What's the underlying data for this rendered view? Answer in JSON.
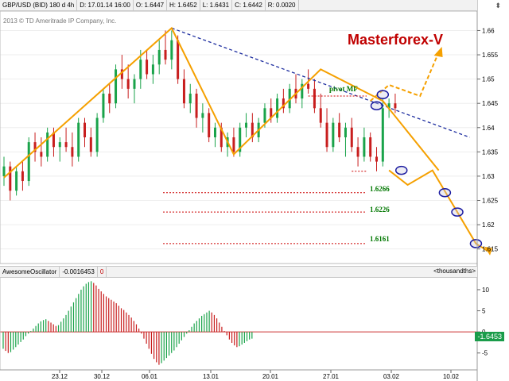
{
  "header": {
    "symbol": "GBP/USD (BID) 180 d 4h",
    "time": "D: 17.01.14 16:00",
    "open": "O: 1.6447",
    "high": "H: 1.6452",
    "low": "L: 1.6431",
    "close": "C: 1.6442",
    "range": "R: 0.0020",
    "copyright": "2013 © TD Ameritrade IP Company, Inc."
  },
  "brand": "Masterforex-V",
  "levels": {
    "pivot": "pivot MF",
    "l1": "1.6266",
    "l2": "1.6226",
    "l3": "1.6161"
  },
  "oscillator": {
    "name": "AwesomeOscillator",
    "value": "-0.0016453",
    "zero": "0",
    "units": "<thousandths>",
    "current": "-1.6453"
  },
  "colors": {
    "bull": "#1aa34a",
    "bear": "#c81e1e",
    "orange": "#f5a000",
    "trend": "#1f2fa0",
    "level": "#cc0000",
    "brand": "#c00000"
  },
  "chart_data": {
    "type": "candlestick",
    "price_axis": {
      "ylim": [
        1.612,
        1.664
      ],
      "ticks": [
        "1.66",
        "1.655",
        "1.65",
        "1.645",
        "1.64",
        "1.635",
        "1.63",
        "1.625",
        "1.62",
        "1.615"
      ]
    },
    "osc_axis": {
      "ylim": [
        -9,
        13
      ],
      "ticks": [
        "10",
        "5",
        "0",
        "-5"
      ]
    },
    "x_axis": {
      "ticks": [
        "23.12",
        "30.12",
        "06.01",
        "13.01",
        "20.01",
        "27.01",
        "03.02",
        "10.02"
      ],
      "bars_visible": 105
    },
    "zigzag": [
      {
        "bar": 0,
        "price": 1.6297
      },
      {
        "bar": 27,
        "price": 1.6605
      },
      {
        "bar": 37,
        "price": 1.6345
      },
      {
        "bar": 51,
        "price": 1.652
      },
      {
        "bar": 61,
        "price": 1.6455
      },
      {
        "bar": 70,
        "price": 1.6312
      }
    ],
    "trendline": {
      "from": {
        "bar": 27,
        "price": 1.6605
      },
      "to": {
        "bar": 75,
        "price": 1.638
      }
    },
    "pivot_level": {
      "price": 1.6465,
      "from_bar": 49
    },
    "support_line": {
      "price": 1.631,
      "from_bar": 56
    },
    "levels": [
      1.6266,
      1.6226,
      1.6161
    ],
    "forecast_down": [
      {
        "bar": 62,
        "price": 1.6312
      },
      {
        "bar": 65,
        "price": 1.6282
      },
      {
        "bar": 69,
        "price": 1.6312
      },
      {
        "bar": 73,
        "price": 1.6226
      },
      {
        "bar": 76,
        "price": 1.6161
      },
      {
        "bar": 78,
        "price": 1.6145
      }
    ],
    "forecast_up": [
      {
        "bar": 59,
        "price": 1.6455
      },
      {
        "bar": 62,
        "price": 1.6488
      },
      {
        "bar": 67,
        "price": 1.6465
      },
      {
        "bar": 70,
        "price": 1.6555
      }
    ],
    "circles": [
      {
        "bar": 61,
        "price": 1.6468
      },
      {
        "bar": 60,
        "price": 1.6445
      },
      {
        "bar": 64,
        "price": 1.6312
      },
      {
        "bar": 71,
        "price": 1.6266
      },
      {
        "bar": 73,
        "price": 1.6226
      },
      {
        "bar": 76,
        "price": 1.6161
      }
    ],
    "candles": [
      [
        1.63,
        1.634,
        1.628,
        1.632
      ],
      [
        1.632,
        1.633,
        1.625,
        1.627
      ],
      [
        1.627,
        1.632,
        1.626,
        1.631
      ],
      [
        1.631,
        1.633,
        1.627,
        1.629
      ],
      [
        1.629,
        1.638,
        1.628,
        1.637
      ],
      [
        1.637,
        1.639,
        1.633,
        1.635
      ],
      [
        1.635,
        1.638,
        1.632,
        1.634
      ],
      [
        1.634,
        1.64,
        1.633,
        1.639
      ],
      [
        1.639,
        1.64,
        1.634,
        1.636
      ],
      [
        1.636,
        1.638,
        1.633,
        1.637
      ],
      [
        1.637,
        1.64,
        1.635,
        1.636
      ],
      [
        1.636,
        1.639,
        1.632,
        1.634
      ],
      [
        1.634,
        1.642,
        1.633,
        1.641
      ],
      [
        1.641,
        1.642,
        1.636,
        1.638
      ],
      [
        1.638,
        1.64,
        1.634,
        1.635
      ],
      [
        1.635,
        1.643,
        1.634,
        1.642
      ],
      [
        1.642,
        1.648,
        1.641,
        1.647
      ],
      [
        1.647,
        1.649,
        1.643,
        1.645
      ],
      [
        1.645,
        1.653,
        1.644,
        1.652
      ],
      [
        1.652,
        1.655,
        1.648,
        1.65
      ],
      [
        1.65,
        1.653,
        1.646,
        1.648
      ],
      [
        1.648,
        1.651,
        1.645,
        1.65
      ],
      [
        1.65,
        1.656,
        1.648,
        1.654
      ],
      [
        1.654,
        1.656,
        1.65,
        1.651
      ],
      [
        1.651,
        1.655,
        1.649,
        1.653
      ],
      [
        1.653,
        1.658,
        1.651,
        1.656
      ],
      [
        1.656,
        1.66,
        1.653,
        1.654
      ],
      [
        1.654,
        1.66,
        1.652,
        1.658
      ],
      [
        1.658,
        1.659,
        1.649,
        1.65
      ],
      [
        1.65,
        1.652,
        1.644,
        1.645
      ],
      [
        1.645,
        1.649,
        1.643,
        1.647
      ],
      [
        1.647,
        1.648,
        1.64,
        1.642
      ],
      [
        1.642,
        1.645,
        1.639,
        1.643
      ],
      [
        1.643,
        1.644,
        1.637,
        1.638
      ],
      [
        1.638,
        1.641,
        1.636,
        1.64
      ],
      [
        1.64,
        1.641,
        1.635,
        1.636
      ],
      [
        1.636,
        1.639,
        1.634,
        1.638
      ],
      [
        1.638,
        1.64,
        1.634,
        1.635
      ],
      [
        1.635,
        1.641,
        1.634,
        1.64
      ],
      [
        1.64,
        1.643,
        1.638,
        1.641
      ],
      [
        1.641,
        1.643,
        1.637,
        1.638
      ],
      [
        1.638,
        1.642,
        1.637,
        1.641
      ],
      [
        1.641,
        1.645,
        1.64,
        1.644
      ],
      [
        1.644,
        1.646,
        1.641,
        1.642
      ],
      [
        1.642,
        1.647,
        1.641,
        1.646
      ],
      [
        1.646,
        1.648,
        1.643,
        1.644
      ],
      [
        1.644,
        1.649,
        1.643,
        1.648
      ],
      [
        1.648,
        1.651,
        1.645,
        1.646
      ],
      [
        1.646,
        1.65,
        1.644,
        1.649
      ],
      [
        1.649,
        1.652,
        1.647,
        1.648
      ],
      [
        1.648,
        1.65,
        1.643,
        1.644
      ],
      [
        1.644,
        1.647,
        1.64,
        1.641
      ],
      [
        1.641,
        1.644,
        1.635,
        1.636
      ],
      [
        1.636,
        1.642,
        1.635,
        1.641
      ],
      [
        1.641,
        1.643,
        1.637,
        1.638
      ],
      [
        1.638,
        1.641,
        1.634,
        1.64
      ],
      [
        1.64,
        1.642,
        1.635,
        1.636
      ],
      [
        1.636,
        1.638,
        1.632,
        1.634
      ],
      [
        1.634,
        1.64,
        1.633,
        1.638
      ],
      [
        1.638,
        1.639,
        1.633,
        1.634
      ],
      [
        1.634,
        1.636,
        1.631,
        1.633
      ],
      [
        1.633,
        1.646,
        1.632,
        1.644
      ],
      [
        1.644,
        1.646,
        1.642,
        1.645
      ],
      [
        1.645,
        1.647,
        1.643,
        1.644
      ]
    ],
    "ao_histogram": [
      -4.0,
      -4.5,
      -5.0,
      -4.8,
      -4.2,
      -3.6,
      -3.0,
      -2.4,
      -1.8,
      -1.0,
      -0.4,
      0.2,
      0.8,
      1.4,
      2.0,
      2.5,
      2.8,
      3.0,
      2.6,
      2.2,
      1.8,
      1.4,
      1.6,
      2.4,
      3.2,
      4.0,
      5.0,
      6.0,
      7.0,
      8.0,
      9.0,
      10.0,
      10.8,
      11.4,
      11.8,
      12.0,
      11.6,
      11.0,
      10.2,
      9.6,
      9.0,
      8.4,
      8.0,
      7.6,
      7.2,
      6.8,
      6.2,
      5.6,
      5.2,
      4.6,
      4.0,
      3.4,
      2.6,
      1.8,
      0.8,
      -0.4,
      -1.6,
      -2.8,
      -4.0,
      -5.2,
      -6.4,
      -7.2,
      -7.8,
      -7.4,
      -6.8,
      -6.2,
      -5.6,
      -5.0,
      -4.4,
      -3.6,
      -2.8,
      -2.0,
      -1.2,
      -0.4,
      0.4,
      1.2,
      2.0,
      2.6,
      3.2,
      3.8,
      4.2,
      4.6,
      5.0,
      4.6,
      4.0,
      3.2,
      2.2,
      1.2,
      0.2,
      -0.8,
      -1.8,
      -2.6,
      -3.2,
      -3.6,
      -3.4,
      -3.0,
      -2.6,
      -2.2,
      -1.8,
      -1.6
    ]
  }
}
